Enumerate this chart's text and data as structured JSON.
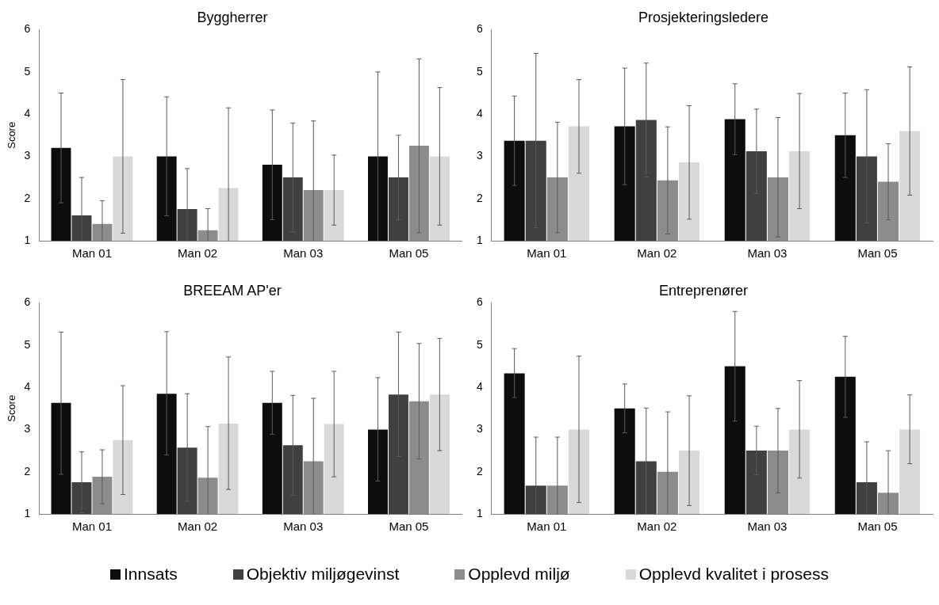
{
  "chart_data": [
    {
      "type": "bar",
      "title": "Byggherrer",
      "ylabel": "Score",
      "categories": [
        "Man 01",
        "Man 02",
        "Man 03",
        "Man 05"
      ],
      "ylim": [
        1,
        6
      ],
      "yticks": [
        1,
        2,
        3,
        4,
        5,
        6
      ],
      "grid": false,
      "legend": "bottom",
      "series": [
        {
          "name": "Innsats",
          "color": "#0d0d0d",
          "values": [
            3.2,
            3.0,
            2.8,
            3.0
          ],
          "errors": [
            [
              1.9,
              4.5
            ],
            [
              1.59,
              4.41
            ],
            [
              1.5,
              4.1
            ],
            [
              1,
              5.0
            ]
          ]
        },
        {
          "name": "Objektiv miljøgevinst",
          "color": "#404040",
          "values": [
            1.6,
            1.75,
            2.5,
            2.5
          ],
          "errors": [
            [
              1,
              2.5
            ],
            [
              1,
              2.71
            ],
            [
              1.21,
              3.79
            ],
            [
              1.5,
              3.5
            ]
          ]
        },
        {
          "name": "Opplevd miljø",
          "color": "#8c8c8c",
          "values": [
            1.4,
            1.25,
            2.2,
            3.25
          ],
          "errors": [
            [
              1,
              1.95
            ],
            [
              1,
              1.76
            ],
            [
              1,
              3.84
            ],
            [
              1.19,
              5.31
            ]
          ]
        },
        {
          "name": "Opplevd kvalitet i prosess",
          "color": "#d9d9d9",
          "values": [
            3.0,
            2.25,
            2.2,
            3.0
          ],
          "errors": [
            [
              1.18,
              4.82
            ],
            [
              1,
              4.15
            ],
            [
              1.37,
              3.03
            ],
            [
              1.37,
              4.63
            ]
          ]
        }
      ]
    },
    {
      "type": "bar",
      "title": "Prosjekteringsledere",
      "categories": [
        "Man 01",
        "Man 02",
        "Man 03",
        "Man 05"
      ],
      "ylim": [
        1,
        6
      ],
      "yticks": [
        1,
        2,
        3,
        4,
        5,
        6
      ],
      "grid": false,
      "series": [
        {
          "color": "#0d0d0d",
          "values": [
            3.37,
            3.71,
            3.88,
            3.5
          ],
          "errors": [
            [
              2.31,
              4.43
            ],
            [
              2.33,
              5.09
            ],
            [
              3.04,
              4.72
            ],
            [
              2.5,
              4.5
            ]
          ]
        },
        {
          "color": "#404040",
          "values": [
            3.37,
            3.86,
            3.12,
            3.0
          ],
          "errors": [
            [
              1.31,
              5.44
            ],
            [
              2.51,
              5.21
            ],
            [
              2.12,
              4.12
            ],
            [
              1.42,
              4.58
            ]
          ]
        },
        {
          "color": "#8c8c8c",
          "values": [
            2.5,
            2.43,
            2.5,
            2.4
          ],
          "errors": [
            [
              1.19,
              3.81
            ],
            [
              1.16,
              3.7
            ],
            [
              1.09,
              3.92
            ],
            [
              1.5,
              3.3
            ]
          ]
        },
        {
          "color": "#d9d9d9",
          "values": [
            3.71,
            2.86,
            3.12,
            3.6
          ],
          "errors": [
            [
              2.6,
              4.82
            ],
            [
              1.51,
              4.2
            ],
            [
              1.76,
              4.49
            ],
            [
              2.08,
              5.12
            ]
          ]
        }
      ]
    },
    {
      "type": "bar",
      "title": "BREEAM AP'er",
      "ylabel": "Score",
      "categories": [
        "Man 01",
        "Man 02",
        "Man 03",
        "Man 05"
      ],
      "ylim": [
        1,
        6
      ],
      "yticks": [
        1,
        2,
        3,
        4,
        5,
        6
      ],
      "grid": false,
      "series": [
        {
          "color": "#0d0d0d",
          "values": [
            3.63,
            3.85,
            3.63,
            3.0
          ],
          "errors": [
            [
              1.94,
              5.31
            ],
            [
              2.4,
              5.32
            ],
            [
              2.89,
              4.38
            ],
            [
              1.78,
              4.23
            ]
          ]
        },
        {
          "color": "#404040",
          "values": [
            1.75,
            2.57,
            2.63,
            3.83
          ],
          "errors": [
            [
              1.03,
              2.47
            ],
            [
              1.3,
              3.85
            ],
            [
              1.44,
              3.81
            ],
            [
              2.36,
              5.31
            ]
          ]
        },
        {
          "color": "#8c8c8c",
          "values": [
            1.88,
            1.86,
            2.25,
            3.67
          ],
          "errors": [
            [
              1.24,
              2.52
            ],
            [
              1,
              3.07
            ],
            [
              1,
              3.74
            ],
            [
              2.3,
              5.04
            ]
          ]
        },
        {
          "color": "#d9d9d9",
          "values": [
            2.75,
            3.14,
            3.13,
            3.83
          ],
          "errors": [
            [
              1.46,
              4.04
            ],
            [
              1.58,
              4.72
            ],
            [
              1.88,
              4.38
            ],
            [
              2.5,
              5.16
            ]
          ]
        }
      ]
    },
    {
      "type": "bar",
      "title": "Entreprenører",
      "categories": [
        "Man 01",
        "Man 02",
        "Man 03",
        "Man 05"
      ],
      "ylim": [
        1,
        6
      ],
      "yticks": [
        1,
        2,
        3,
        4,
        5,
        6
      ],
      "grid": false,
      "series": [
        {
          "color": "#0d0d0d",
          "values": [
            4.33,
            3.5,
            4.5,
            4.25
          ],
          "errors": [
            [
              3.76,
              4.92
            ],
            [
              2.92,
              4.08
            ],
            [
              3.2,
              5.8
            ],
            [
              3.29,
              5.21
            ]
          ]
        },
        {
          "color": "#404040",
          "values": [
            1.67,
            2.25,
            2.5,
            1.75
          ],
          "errors": [
            [
              1,
              2.82
            ],
            [
              1,
              3.51
            ],
            [
              1.93,
              3.08
            ],
            [
              1,
              2.71
            ]
          ]
        },
        {
          "color": "#8c8c8c",
          "values": [
            1.67,
            2.0,
            2.5,
            1.5
          ],
          "errors": [
            [
              1,
              2.82
            ],
            [
              1,
              3.42
            ],
            [
              1.5,
              3.5
            ],
            [
              1,
              2.5
            ]
          ]
        },
        {
          "color": "#d9d9d9",
          "values": [
            3.0,
            2.5,
            3.0,
            3.0
          ],
          "errors": [
            [
              1.27,
              4.74
            ],
            [
              1.2,
              3.8
            ],
            [
              1.85,
              4.16
            ],
            [
              2.19,
              3.82
            ]
          ]
        }
      ]
    }
  ]
}
